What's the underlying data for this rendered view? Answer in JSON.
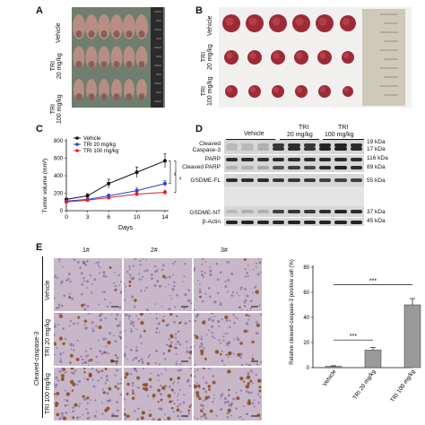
{
  "panels": {
    "A": "A",
    "B": "B",
    "C": "C",
    "D": "D",
    "E": "E"
  },
  "group_labels": {
    "vehicle": "Vehicle",
    "tri20_line1": "TRI",
    "tri20_line2": "20 mg/kg",
    "tri100_line1": "TRI",
    "tri100_line2": "100 mg/kg",
    "tri20": "TRI 20 mg/kg",
    "tri100": "TRI 100 mg/kg"
  },
  "blot": {
    "header_vehicle": "Vehicle",
    "header_tri": "TRI",
    "header_tri20": "20 mg/kg",
    "header_tri100": "100 mg/kg",
    "labels": {
      "cleaved_casp3_1": "Cleaved",
      "cleaved_casp3_2": "Caspase-3",
      "parp": "PARP",
      "cleaved_parp": "Cleaved PARP",
      "gsdme_fl": "GSDME-FL",
      "gsdme_nt": "GSDME-NT",
      "actin": "β-Actin"
    },
    "kda": [
      "19 kDa",
      "17 kDa",
      "116 kDa",
      "89 kDa",
      "55 kDa",
      "37 kDa",
      "45 kDa"
    ]
  },
  "ihc": {
    "cols": [
      "1#",
      "2#",
      "3#"
    ],
    "row_axis": "Cleaved-caspase-3",
    "rows": [
      "Vehicle",
      "TRI 20 mg/kg",
      "TRI 100 mg/kg"
    ]
  },
  "chart_data": [
    {
      "type": "line",
      "xlabel": "Days",
      "ylabel": "Tumor volume (mm³)",
      "x": [
        0,
        3,
        6,
        10,
        14
      ],
      "ylim": [
        0,
        800
      ],
      "yticks": [
        0,
        200,
        400,
        600,
        800
      ],
      "legend_position": "top-left",
      "series": [
        {
          "name": "Vehicle",
          "color": "#111111",
          "values": [
            130,
            170,
            310,
            440,
            570
          ],
          "errors": [
            15,
            25,
            50,
            60,
            80
          ]
        },
        {
          "name": "TRI 20 mg/kg",
          "color": "#2a3fd6",
          "values": [
            110,
            130,
            170,
            230,
            310
          ],
          "errors": [
            10,
            15,
            20,
            30,
            35
          ]
        },
        {
          "name": "TRI 100 mg/kg",
          "color": "#e0202a",
          "values": [
            100,
            120,
            150,
            190,
            210
          ],
          "errors": [
            10,
            10,
            15,
            20,
            25
          ]
        }
      ],
      "significance": [
        "**",
        "**"
      ]
    },
    {
      "type": "bar",
      "ylabel": "Relative cleaved-caspase-3 positive cell (%)",
      "categories": [
        "Vehicle",
        "TRI 20 mg/kg",
        "TRI 100 mg/kg"
      ],
      "values": [
        1,
        14,
        50
      ],
      "errors": [
        0.5,
        2,
        5
      ],
      "ylim": [
        0,
        80
      ],
      "yticks": [
        0,
        20,
        40,
        60,
        80
      ],
      "significance": [
        "***",
        "***"
      ]
    }
  ]
}
